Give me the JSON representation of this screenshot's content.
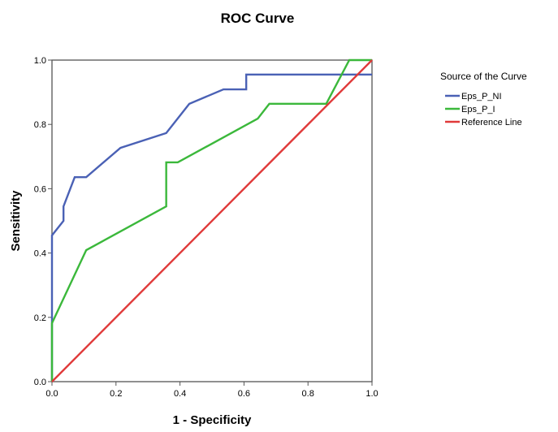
{
  "chart_data": {
    "type": "line",
    "title": "ROC Curve",
    "xlabel": "1 - Specificity",
    "ylabel": "Sensitivity",
    "xlim": [
      0,
      1
    ],
    "ylim": [
      0,
      1
    ],
    "xticks": [
      0.0,
      0.2,
      0.4,
      0.6,
      0.8,
      1.0
    ],
    "yticks": [
      0.0,
      0.2,
      0.4,
      0.6,
      0.8,
      1.0
    ],
    "xtick_labels": [
      "0.0",
      "0.2",
      "0.4",
      "0.6",
      "0.8",
      "1.0"
    ],
    "ytick_labels": [
      "0.0",
      "0.2",
      "0.4",
      "0.6",
      "0.8",
      "1.0"
    ],
    "grid": false,
    "legend": {
      "title": "Source of the Curve",
      "position": "right"
    },
    "series": [
      {
        "name": "Eps_P_NI",
        "color": "#4a61b5",
        "points": [
          [
            0.0,
            0.0
          ],
          [
            0.0,
            0.455
          ],
          [
            0.036,
            0.5
          ],
          [
            0.036,
            0.545
          ],
          [
            0.071,
            0.636
          ],
          [
            0.107,
            0.636
          ],
          [
            0.214,
            0.727
          ],
          [
            0.357,
            0.773
          ],
          [
            0.429,
            0.864
          ],
          [
            0.536,
            0.909
          ],
          [
            0.607,
            0.909
          ],
          [
            0.607,
            0.955
          ],
          [
            1.0,
            0.955
          ]
        ]
      },
      {
        "name": "Eps_P_I",
        "color": "#3bb83b",
        "points": [
          [
            0.0,
            0.0
          ],
          [
            0.0,
            0.182
          ],
          [
            0.107,
            0.409
          ],
          [
            0.357,
            0.545
          ],
          [
            0.357,
            0.682
          ],
          [
            0.393,
            0.682
          ],
          [
            0.643,
            0.818
          ],
          [
            0.679,
            0.864
          ],
          [
            0.857,
            0.864
          ],
          [
            0.929,
            1.0
          ],
          [
            1.0,
            1.0
          ]
        ]
      },
      {
        "name": "Reference Line",
        "color": "#e03a3a",
        "points": [
          [
            0.0,
            0.0
          ],
          [
            1.0,
            1.0
          ]
        ]
      }
    ]
  }
}
